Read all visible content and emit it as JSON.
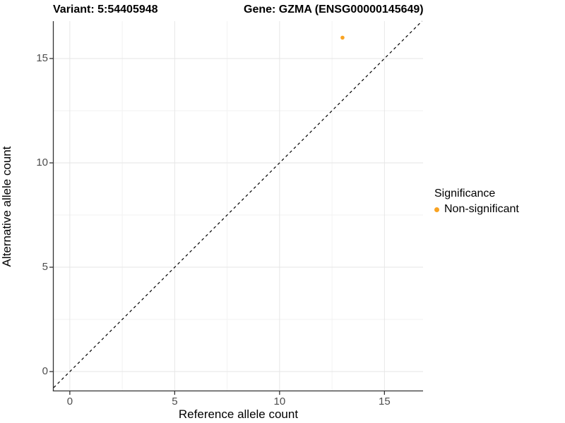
{
  "titles": {
    "variant": "Variant: 5:54405948",
    "gene": "Gene: GZMA (ENSG00000145649)"
  },
  "legend": {
    "title": "Significance",
    "items": [
      {
        "label": "Non-significant",
        "color": "#F9A322"
      }
    ]
  },
  "colors": {
    "point_orange": "#F9A322",
    "axis_line": "#333333",
    "tick_label": "#4d4d4d",
    "grid_major": "#e6e6e6",
    "grid_minor": "#f2f2f2",
    "identity_line": "#000000"
  },
  "chart_data": {
    "type": "scatter",
    "title_left": "Variant: 5:54405948",
    "title_right": "Gene: GZMA (ENSG00000145649)",
    "xlabel": "Reference allele count",
    "ylabel": "Alternative allele count",
    "xlim": [
      -0.77,
      16.84
    ],
    "ylim": [
      -0.91,
      16.79
    ],
    "xticks": [
      0,
      5,
      10,
      15
    ],
    "yticks": [
      0,
      5,
      10,
      15
    ],
    "xminor": [
      2.5,
      7.5,
      12.5
    ],
    "yminor": [
      2.5,
      7.5,
      12.5
    ],
    "grid": true,
    "legend_position": "right",
    "series": [
      {
        "name": "Non-significant",
        "color": "#F9A322",
        "points": [
          {
            "x": 13,
            "y": 16
          }
        ]
      }
    ],
    "abline": {
      "slope": 1,
      "intercept": 0,
      "style": "dashed",
      "color": "#000000"
    }
  }
}
